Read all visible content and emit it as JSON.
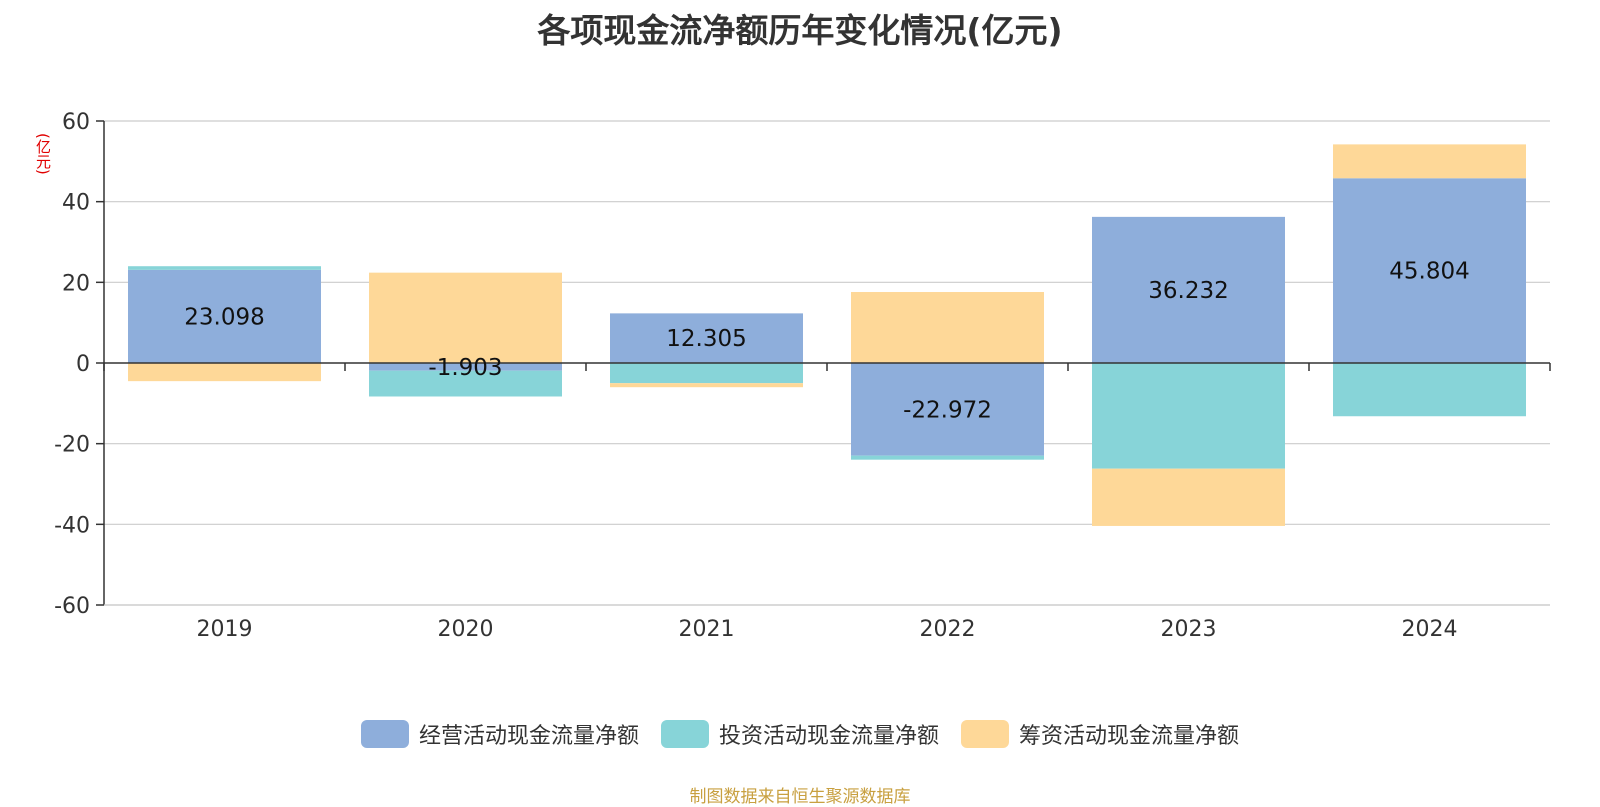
{
  "title": "各项现金流净额历年变化情况(亿元)",
  "y_unit": "(亿元)",
  "source_note": "制图数据来自恒生聚源数据库",
  "colors": {
    "operating": "#8eaedb",
    "investing": "#87d4d8",
    "financing": "#fed898",
    "grid": "#cccccc",
    "axis": "#333333"
  },
  "chart_data": {
    "type": "bar",
    "stacked": true,
    "categories": [
      "2019",
      "2020",
      "2021",
      "2022",
      "2023",
      "2024"
    ],
    "ylim": [
      -60,
      60
    ],
    "yticks": [
      60,
      40,
      20,
      0,
      -20,
      -40,
      -60
    ],
    "ytick_labels": [
      "60",
      "40",
      "20",
      "0",
      "-20",
      "-40",
      "-60"
    ],
    "grid": true,
    "legend_position": "bottom-center",
    "series": [
      {
        "name": "经营活动现金流量净额",
        "color_key": "operating",
        "values": [
          23.098,
          -1.903,
          12.305,
          -22.972,
          36.232,
          45.804
        ],
        "labels": [
          "23.098",
          "-1.903",
          "12.305",
          "-22.972",
          "36.232",
          "45.804"
        ]
      },
      {
        "name": "投资活动现金流量净额",
        "color_key": "investing",
        "values": [
          0.9,
          -6.4,
          -5.0,
          -1.0,
          -26.2,
          -13.2
        ]
      },
      {
        "name": "筹资活动现金流量净额",
        "color_key": "financing",
        "values": [
          -4.5,
          22.4,
          -1.0,
          17.6,
          -14.2,
          8.4
        ]
      }
    ]
  }
}
